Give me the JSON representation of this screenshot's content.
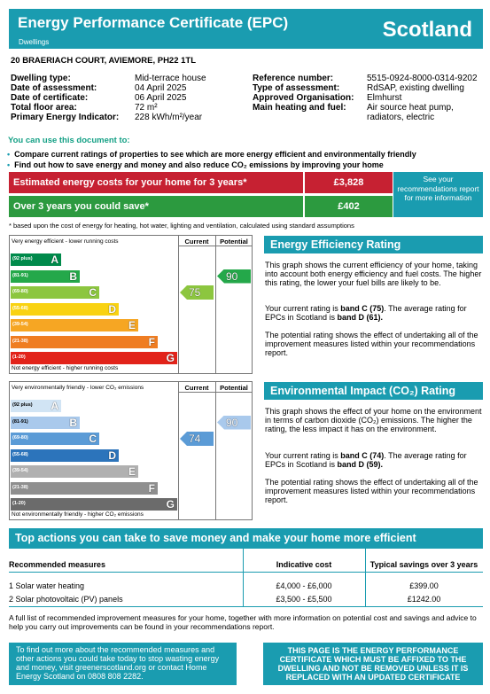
{
  "header": {
    "title": "Energy Performance Certificate (EPC)",
    "subtitle": "Dwellings",
    "country": "Scotland"
  },
  "address": "20 BRAERIACH COURT, AVIEMORE, PH22 1TL",
  "property": {
    "dwelling_type_label": "Dwelling type:",
    "dwelling_type": "Mid-terrace house",
    "assessment_date_label": "Date of assessment:",
    "assessment_date": "04 April 2025",
    "certificate_date_label": "Date of certificate:",
    "certificate_date": "06 April 2025",
    "floor_area_label": "Total floor area:",
    "floor_area": "72 m²",
    "pei_label": "Primary Energy Indicator:",
    "pei": "228 kWh/m²/year",
    "reference_label": "Reference number:",
    "reference": "5515-0924-8000-0314-9202",
    "assessment_type_label": "Type of assessment:",
    "assessment_type": "RdSAP, existing dwelling",
    "organisation_label": "Approved Organisation:",
    "organisation": "Elmhurst",
    "heating_label": "Main heating and fuel:",
    "heating_line1": "Air source heat pump,",
    "heating_line2": "radiators, electric"
  },
  "use": {
    "title": "You can use this document to:",
    "bullet1": "Compare current ratings of properties to see which are more energy efficient and environmentally friendly",
    "bullet2": "Find out how to save energy and money and also reduce CO₂ emissions by improving your home"
  },
  "costs": {
    "estimated_label": "Estimated energy costs for your home for 3 years*",
    "estimated_value": "£3,828",
    "save_label": "Over 3 years you could save*",
    "save_value": "£402",
    "see_link": "See your recommendations report for more information",
    "footnote": "* based upon the cost of energy for heating, hot water, lighting and ventilation, calculated using standard assumptions",
    "colors": {
      "estimated": "#c62132",
      "save": "#2c9a3f"
    }
  },
  "efficiency_graph": {
    "top_label": "Very energy efficient - lower running costs",
    "bottom_label": "Not energy efficient - higher running costs",
    "current_header": "Current",
    "potential_header": "Potential",
    "bands": [
      {
        "range": "(92 plus)",
        "letter": "A",
        "color": "#008a4b"
      },
      {
        "range": "(81-91)",
        "letter": "B",
        "color": "#24a84a"
      },
      {
        "range": "(69-80)",
        "letter": "C",
        "color": "#8cc63f"
      },
      {
        "range": "(55-68)",
        "letter": "D",
        "color": "#f9d212"
      },
      {
        "range": "(39-54)",
        "letter": "E",
        "color": "#f6a623"
      },
      {
        "range": "(21-38)",
        "letter": "F",
        "color": "#ef7d22"
      },
      {
        "range": "(1-20)",
        "letter": "G",
        "color": "#e2231a"
      }
    ],
    "current": 75,
    "current_color": "#8cc63f",
    "potential": 90,
    "potential_color": "#24a84a"
  },
  "environment_graph": {
    "top_label": "Very environmentally friendly - lower CO₂ emissions",
    "bottom_label": "Not environmentally friendly - higher CO₂ emissions",
    "current_header": "Current",
    "potential_header": "Potential",
    "bands": [
      {
        "range": "(92 plus)",
        "letter": "A",
        "color": "#d1e4f4"
      },
      {
        "range": "(81-91)",
        "letter": "B",
        "color": "#a9c9ec"
      },
      {
        "range": "(69-80)",
        "letter": "C",
        "color": "#5b9bd6"
      },
      {
        "range": "(55-68)",
        "letter": "D",
        "color": "#2c74bb"
      },
      {
        "range": "(39-54)",
        "letter": "E",
        "color": "#b0b0b0"
      },
      {
        "range": "(21-38)",
        "letter": "F",
        "color": "#8f8f8f"
      },
      {
        "range": "(1-20)",
        "letter": "G",
        "color": "#6b6b6b"
      }
    ],
    "current": 74,
    "current_color": "#5b9bd6",
    "potential": 90,
    "potential_color": "#a9c9ec"
  },
  "efficiency_text": {
    "heading": "Energy Efficiency Rating",
    "p1": "This graph shows the current efficiency of your home, taking into account both energy efficiency and fuel costs. The higher this rating, the lower your fuel bills are likely to be.",
    "p2a": "Your current rating is ",
    "p2b": "band C (75)",
    "p2c": ". The average rating for EPCs in Scotland is ",
    "p2d": "band D (61).",
    "p3": "The potential rating shows the effect of undertaking all of the improvement measures listed within your recommendations report."
  },
  "environment_text": {
    "heading": "Environmental Impact (CO₂) Rating",
    "p1": "This graph shows the effect of your home on the environment in terms of carbon dioxide (CO₂) emissions. The higher the rating, the less impact it has on the environment.",
    "p2a": "Your current rating is ",
    "p2b": "band C (74)",
    "p2c": ". The average rating for EPCs in Scotland is ",
    "p2d": "band D (59).",
    "p3": "The potential rating shows the effect of undertaking all of the improvement measures listed within your recommendations report."
  },
  "actions": {
    "heading": "Top actions you can take to save money and make your home more efficient",
    "col_measure": "Recommended measures",
    "col_cost": "Indicative cost",
    "col_savings": "Typical savings over 3 years",
    "rows": [
      {
        "measure": "1 Solar water heating",
        "cost": "£4,000 - £6,000",
        "savings": "£399.00"
      },
      {
        "measure": "2 Solar photovoltaic (PV) panels",
        "cost": "£3,500 - £5,500",
        "savings": "£1242.00"
      }
    ]
  },
  "full_list": "A full list of recommended improvement measures for your home, together with more information on potential cost and savings and advice to help you carry out improvements can be found in your recommendations report.",
  "footer": {
    "left": "To find out more about the recommended measures and other actions you could take today to stop wasting energy and money, visit greenerscotland.org or contact Home Energy Scotland on 0808 808 2282.",
    "right": "THIS PAGE IS THE ENERGY PERFORMANCE CERTIFICATE WHICH MUST BE AFFIXED TO THE DWELLING AND NOT BE REMOVED UNLESS IT IS REPLACED WITH AN UPDATED CERTIFICATE"
  }
}
